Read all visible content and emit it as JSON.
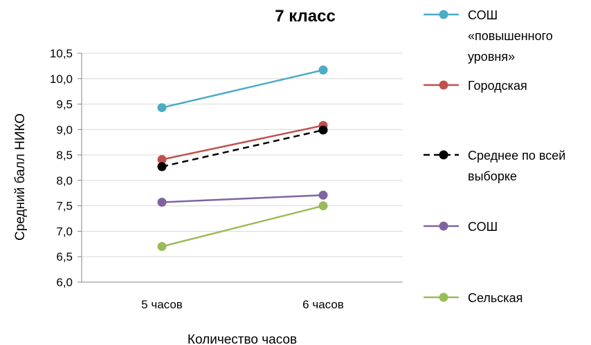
{
  "chart_data": {
    "type": "line",
    "title": "7 класс",
    "xlabel": "Количество часов",
    "ylabel": "Средний балл НИКО",
    "categories": [
      "5 часов",
      "6 часов"
    ],
    "ylim": [
      6.0,
      10.5
    ],
    "ytick_labels": [
      "6,0",
      "6,5",
      "7,0",
      "7,5",
      "8,0",
      "8,5",
      "9,0",
      "9,5",
      "10,0",
      "10,5"
    ],
    "grid": true,
    "legend_position": "right",
    "series": [
      {
        "name": "СОШ «повышенного уровня»",
        "legend_lines": [
          "СОШ",
          "«повышенного",
          "уровня»"
        ],
        "values": [
          9.43,
          10.17
        ],
        "color": "#4bacc6",
        "dashed": false
      },
      {
        "name": "Городская",
        "legend_lines": [
          "Городская"
        ],
        "values": [
          8.41,
          9.08
        ],
        "color": "#c0504d",
        "dashed": false
      },
      {
        "name": "Среднее по всей выборке",
        "legend_lines": [
          "Среднее по всей",
          "выборке"
        ],
        "values": [
          8.27,
          8.99
        ],
        "color": "#000000",
        "dashed": true
      },
      {
        "name": "СОШ",
        "legend_lines": [
          "СОШ"
        ],
        "values": [
          7.57,
          7.71
        ],
        "color": "#8064a2",
        "dashed": false
      },
      {
        "name": "Сельская",
        "legend_lines": [
          "Сельская"
        ],
        "values": [
          6.7,
          7.5
        ],
        "color": "#9bbb59",
        "dashed": false
      }
    ]
  }
}
